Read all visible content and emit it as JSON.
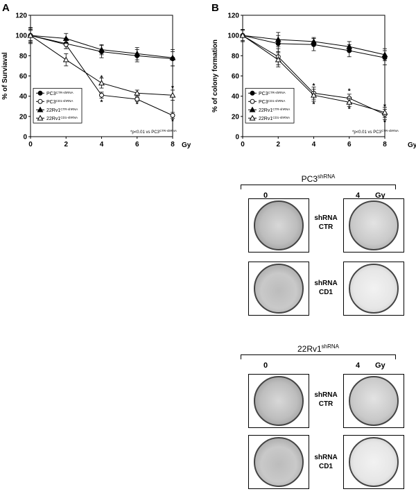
{
  "chart_data": [
    {
      "type": "line",
      "panel": "A",
      "ylabel": "% of Surviaval",
      "xlabel": "Gy",
      "x": [
        0,
        2,
        4,
        6,
        8
      ],
      "xlim": [
        0,
        8
      ],
      "ylim": [
        0,
        120
      ],
      "yticks": [
        0,
        20,
        40,
        60,
        80,
        100,
        120
      ],
      "xticks": [
        0,
        2,
        4,
        6,
        8
      ],
      "series": [
        {
          "name": "PC3",
          "sup": "CTR-shRNA",
          "marker": "filled-circle",
          "values": [
            100,
            92,
            84,
            80,
            77
          ],
          "errors": [
            7,
            5,
            6,
            6,
            7
          ]
        },
        {
          "name": "PC3",
          "sup": "CD1-shRNA",
          "marker": "open-circle",
          "values": [
            100,
            91,
            41,
            37,
            21
          ],
          "errors": [
            5,
            4,
            3,
            2,
            3
          ]
        },
        {
          "name": "22Rv1",
          "sup": "CTR-shRNA",
          "marker": "filled-triangle",
          "values": [
            100,
            97,
            86,
            82,
            78
          ],
          "errors": [
            6,
            5,
            5,
            6,
            8
          ]
        },
        {
          "name": "22Rv1",
          "sup": "CD1-shRNA",
          "marker": "open-triangle",
          "values": [
            100,
            76,
            53,
            43,
            41
          ],
          "errors": [
            8,
            6,
            5,
            3,
            5
          ]
        }
      ],
      "significance_marks": [
        {
          "x": 4,
          "y": 58
        },
        {
          "x": 4,
          "y": 34
        },
        {
          "x": 6,
          "y": 32
        },
        {
          "x": 8,
          "y": 48
        },
        {
          "x": 8,
          "y": 15
        }
      ],
      "annotation": "*p<0.01 vs PC3",
      "annotation_sup": "CTR-shRNA"
    },
    {
      "type": "line",
      "panel": "B",
      "ylabel": "% of colony formation",
      "xlabel": "Gy",
      "x": [
        0,
        2,
        4,
        6,
        8
      ],
      "xlim": [
        0,
        8
      ],
      "ylim": [
        0,
        120
      ],
      "yticks": [
        0,
        20,
        40,
        60,
        80,
        100,
        120
      ],
      "xticks": [
        0,
        2,
        4,
        6,
        8
      ],
      "series": [
        {
          "name": "PC3",
          "sup": "CTR-shRNA",
          "marker": "filled-circle",
          "values": [
            100,
            92,
            91,
            85,
            78
          ],
          "errors": [
            6,
            8,
            6,
            6,
            7
          ]
        },
        {
          "name": "PC3",
          "sup": "CD1-shRNA",
          "marker": "open-circle",
          "values": [
            100,
            79,
            43,
            38,
            22
          ],
          "errors": [
            5,
            8,
            6,
            4,
            5
          ]
        },
        {
          "name": "22Rv1",
          "sup": "CTR-shRNA",
          "marker": "filled-triangle",
          "values": [
            100,
            96,
            94,
            89,
            81
          ],
          "errors": [
            6,
            7,
            4,
            5,
            6
          ]
        },
        {
          "name": "22Rv1",
          "sup": "CD1-shRNA",
          "marker": "open-triangle",
          "values": [
            100,
            76,
            41,
            34,
            24
          ],
          "errors": [
            6,
            7,
            6,
            4,
            5
          ]
        }
      ],
      "significance_marks": [
        {
          "x": 4,
          "y": 50
        },
        {
          "x": 4,
          "y": 32
        },
        {
          "x": 6,
          "y": 45
        },
        {
          "x": 6,
          "y": 27
        },
        {
          "x": 8,
          "y": 30
        },
        {
          "x": 8,
          "y": 14
        }
      ],
      "annotation": "*p<0.01 vs PC3",
      "annotation_sup": "CTR-shRNA"
    }
  ],
  "groups": [
    {
      "title": "PC3",
      "title_sup": "shRNA",
      "dose_low": "0",
      "dose_high": "4",
      "dose_unit": "Gy",
      "rows": [
        {
          "line1": "shRNA",
          "line2": "CTR"
        },
        {
          "line1": "shRNA",
          "line2": "CD1"
        }
      ]
    },
    {
      "title": "22Rv1",
      "title_sup": "shRNA",
      "dose_low": "0",
      "dose_high": "4",
      "dose_unit": "Gy",
      "rows": [
        {
          "line1": "shRNA",
          "line2": "CTR"
        },
        {
          "line1": "shRNA",
          "line2": "CD1"
        }
      ]
    }
  ]
}
